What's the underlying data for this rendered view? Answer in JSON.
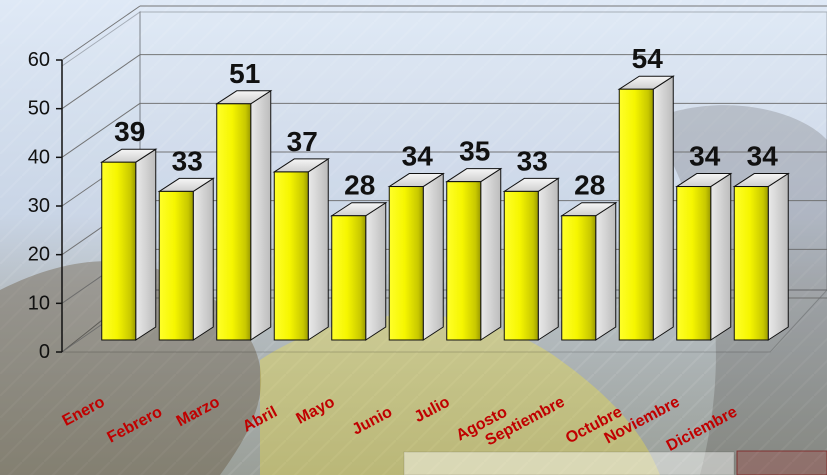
{
  "chart_data": {
    "type": "bar",
    "categories": [
      "Enero",
      "Febrero",
      "Marzo",
      "Abril",
      "Mayo",
      "Junio",
      "Julio",
      "Agosto",
      "Septiembre",
      "Octubre",
      "Noviembre",
      "Diciembre"
    ],
    "values": [
      39,
      33,
      51,
      37,
      28,
      34,
      35,
      33,
      28,
      54,
      34,
      34
    ],
    "ylim": [
      0,
      60
    ],
    "yticks": [
      0,
      10,
      20,
      30,
      40,
      50,
      60
    ],
    "grid": true,
    "bar_style": "3d-cylinder-like",
    "colors": {
      "bar_light": "#ffff2a",
      "bar_mid": "#f1f100",
      "bar_dark": "#9a9a00",
      "category_label": "#c00000",
      "value_label": "#111111",
      "axis": "#111111",
      "grid": "#6a6a6a"
    }
  }
}
